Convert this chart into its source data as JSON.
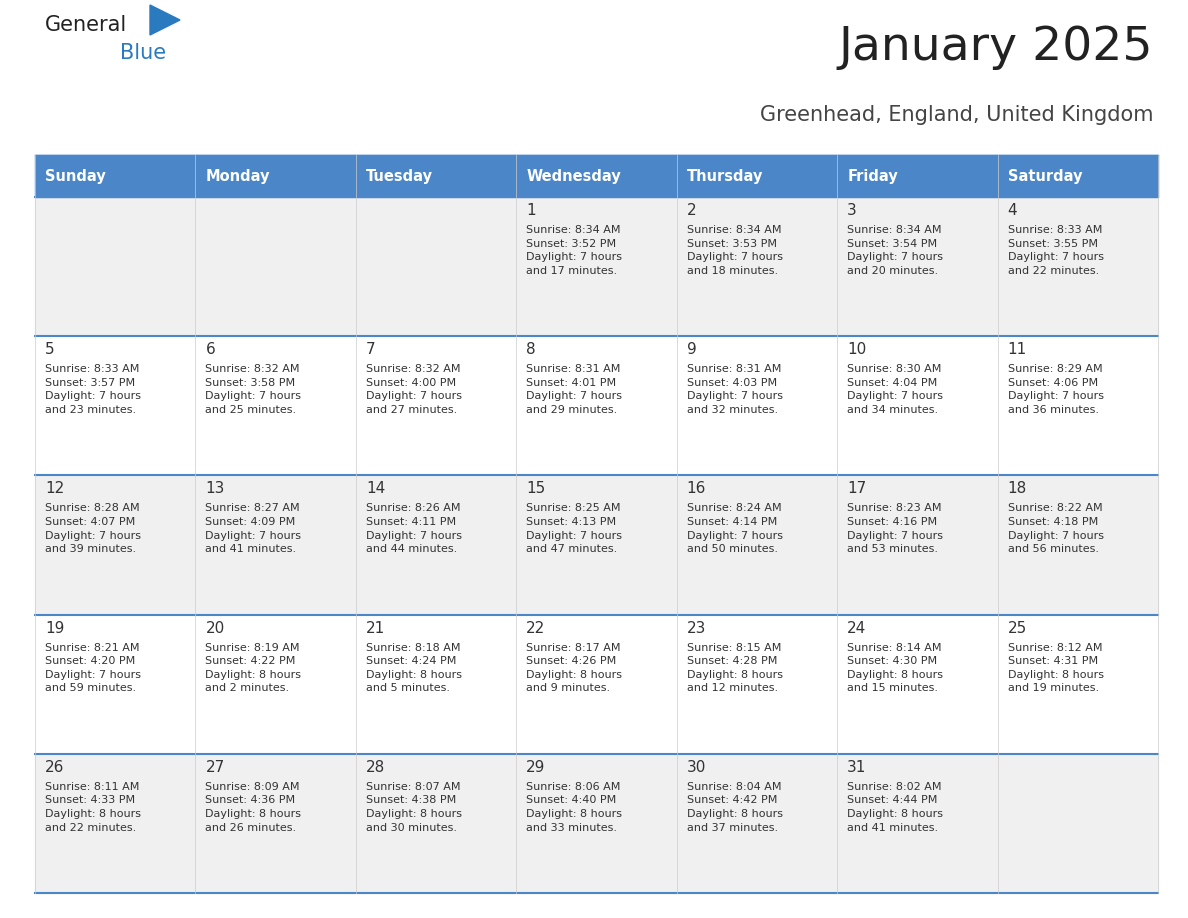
{
  "title": "January 2025",
  "subtitle": "Greenhead, England, United Kingdom",
  "header_bg": "#4a86c8",
  "header_text_color": "#ffffff",
  "cell_bg_even": "#f0f0f0",
  "cell_bg_odd": "#ffffff",
  "row_line_color": "#4a86c8",
  "col_line_color": "#cccccc",
  "text_color": "#333333",
  "days_of_week": [
    "Sunday",
    "Monday",
    "Tuesday",
    "Wednesday",
    "Thursday",
    "Friday",
    "Saturday"
  ],
  "weeks": [
    [
      {
        "day": "",
        "info": ""
      },
      {
        "day": "",
        "info": ""
      },
      {
        "day": "",
        "info": ""
      },
      {
        "day": "1",
        "info": "Sunrise: 8:34 AM\nSunset: 3:52 PM\nDaylight: 7 hours\nand 17 minutes."
      },
      {
        "day": "2",
        "info": "Sunrise: 8:34 AM\nSunset: 3:53 PM\nDaylight: 7 hours\nand 18 minutes."
      },
      {
        "day": "3",
        "info": "Sunrise: 8:34 AM\nSunset: 3:54 PM\nDaylight: 7 hours\nand 20 minutes."
      },
      {
        "day": "4",
        "info": "Sunrise: 8:33 AM\nSunset: 3:55 PM\nDaylight: 7 hours\nand 22 minutes."
      }
    ],
    [
      {
        "day": "5",
        "info": "Sunrise: 8:33 AM\nSunset: 3:57 PM\nDaylight: 7 hours\nand 23 minutes."
      },
      {
        "day": "6",
        "info": "Sunrise: 8:32 AM\nSunset: 3:58 PM\nDaylight: 7 hours\nand 25 minutes."
      },
      {
        "day": "7",
        "info": "Sunrise: 8:32 AM\nSunset: 4:00 PM\nDaylight: 7 hours\nand 27 minutes."
      },
      {
        "day": "8",
        "info": "Sunrise: 8:31 AM\nSunset: 4:01 PM\nDaylight: 7 hours\nand 29 minutes."
      },
      {
        "day": "9",
        "info": "Sunrise: 8:31 AM\nSunset: 4:03 PM\nDaylight: 7 hours\nand 32 minutes."
      },
      {
        "day": "10",
        "info": "Sunrise: 8:30 AM\nSunset: 4:04 PM\nDaylight: 7 hours\nand 34 minutes."
      },
      {
        "day": "11",
        "info": "Sunrise: 8:29 AM\nSunset: 4:06 PM\nDaylight: 7 hours\nand 36 minutes."
      }
    ],
    [
      {
        "day": "12",
        "info": "Sunrise: 8:28 AM\nSunset: 4:07 PM\nDaylight: 7 hours\nand 39 minutes."
      },
      {
        "day": "13",
        "info": "Sunrise: 8:27 AM\nSunset: 4:09 PM\nDaylight: 7 hours\nand 41 minutes."
      },
      {
        "day": "14",
        "info": "Sunrise: 8:26 AM\nSunset: 4:11 PM\nDaylight: 7 hours\nand 44 minutes."
      },
      {
        "day": "15",
        "info": "Sunrise: 8:25 AM\nSunset: 4:13 PM\nDaylight: 7 hours\nand 47 minutes."
      },
      {
        "day": "16",
        "info": "Sunrise: 8:24 AM\nSunset: 4:14 PM\nDaylight: 7 hours\nand 50 minutes."
      },
      {
        "day": "17",
        "info": "Sunrise: 8:23 AM\nSunset: 4:16 PM\nDaylight: 7 hours\nand 53 minutes."
      },
      {
        "day": "18",
        "info": "Sunrise: 8:22 AM\nSunset: 4:18 PM\nDaylight: 7 hours\nand 56 minutes."
      }
    ],
    [
      {
        "day": "19",
        "info": "Sunrise: 8:21 AM\nSunset: 4:20 PM\nDaylight: 7 hours\nand 59 minutes."
      },
      {
        "day": "20",
        "info": "Sunrise: 8:19 AM\nSunset: 4:22 PM\nDaylight: 8 hours\nand 2 minutes."
      },
      {
        "day": "21",
        "info": "Sunrise: 8:18 AM\nSunset: 4:24 PM\nDaylight: 8 hours\nand 5 minutes."
      },
      {
        "day": "22",
        "info": "Sunrise: 8:17 AM\nSunset: 4:26 PM\nDaylight: 8 hours\nand 9 minutes."
      },
      {
        "day": "23",
        "info": "Sunrise: 8:15 AM\nSunset: 4:28 PM\nDaylight: 8 hours\nand 12 minutes."
      },
      {
        "day": "24",
        "info": "Sunrise: 8:14 AM\nSunset: 4:30 PM\nDaylight: 8 hours\nand 15 minutes."
      },
      {
        "day": "25",
        "info": "Sunrise: 8:12 AM\nSunset: 4:31 PM\nDaylight: 8 hours\nand 19 minutes."
      }
    ],
    [
      {
        "day": "26",
        "info": "Sunrise: 8:11 AM\nSunset: 4:33 PM\nDaylight: 8 hours\nand 22 minutes."
      },
      {
        "day": "27",
        "info": "Sunrise: 8:09 AM\nSunset: 4:36 PM\nDaylight: 8 hours\nand 26 minutes."
      },
      {
        "day": "28",
        "info": "Sunrise: 8:07 AM\nSunset: 4:38 PM\nDaylight: 8 hours\nand 30 minutes."
      },
      {
        "day": "29",
        "info": "Sunrise: 8:06 AM\nSunset: 4:40 PM\nDaylight: 8 hours\nand 33 minutes."
      },
      {
        "day": "30",
        "info": "Sunrise: 8:04 AM\nSunset: 4:42 PM\nDaylight: 8 hours\nand 37 minutes."
      },
      {
        "day": "31",
        "info": "Sunrise: 8:02 AM\nSunset: 4:44 PM\nDaylight: 8 hours\nand 41 minutes."
      },
      {
        "day": "",
        "info": ""
      }
    ]
  ],
  "logo_general_color": "#222222",
  "logo_blue_color": "#2a7abf",
  "logo_triangle_color": "#2a7abf",
  "figsize": [
    11.88,
    9.18
  ],
  "dpi": 100
}
